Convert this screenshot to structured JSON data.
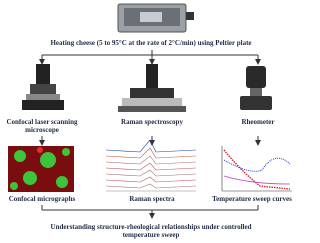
{
  "header": {
    "title": "Heating cheese (5 to 95°C at the rate of 2°C/min) using Peltier plate"
  },
  "instruments": [
    {
      "label": "Confocal laser scanning microscope",
      "output": "Confocal micrographs"
    },
    {
      "label": "Raman spectroscopy",
      "output": "Raman spectra"
    },
    {
      "label": "Rheometer",
      "output": "Temperature sweep curves"
    }
  ],
  "conclusion": "Understanding structure-rheological relationships under controlled temperature sweep"
}
